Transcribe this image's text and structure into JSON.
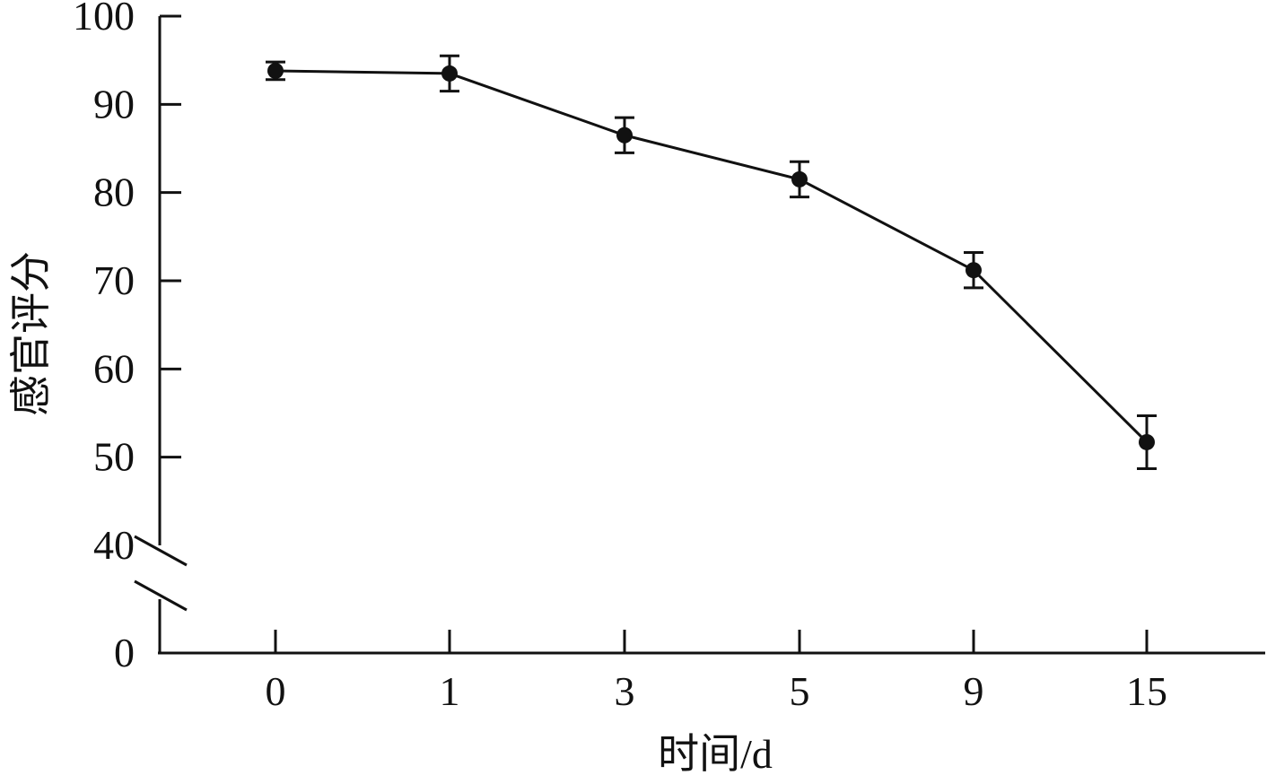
{
  "chart_data": {
    "type": "line",
    "title": "",
    "xlabel": "时间/d",
    "ylabel": "感官评分",
    "categories": [
      "0",
      "1",
      "3",
      "5",
      "9",
      "15"
    ],
    "series": [
      {
        "values": [
          93.8,
          93.5,
          86.5,
          81.5,
          71.2,
          51.7
        ],
        "error": [
          1.0,
          2.0,
          2.0,
          2.0,
          2.0,
          3.0
        ],
        "color": "#111111",
        "marker": "circle"
      }
    ],
    "yticks": [
      "0",
      "40",
      "50",
      "60",
      "70",
      "80",
      "90",
      "100"
    ],
    "ylim": [
      40,
      100
    ],
    "y_axis_break": [
      0,
      40
    ],
    "grid": false,
    "legend": "none"
  }
}
